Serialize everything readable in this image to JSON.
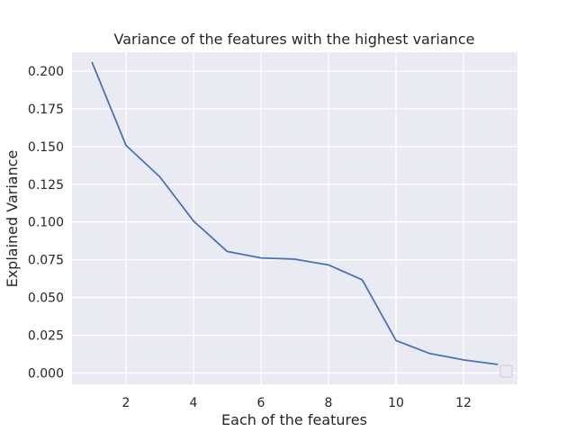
{
  "chart_data": {
    "type": "line",
    "title": "Variance of the features with the highest variance",
    "xlabel": "Each of the features",
    "ylabel": "Explained Variance",
    "x": [
      1,
      2,
      3,
      4,
      5,
      6,
      7,
      8,
      9,
      10,
      11,
      12,
      13
    ],
    "series": [
      {
        "values": [
          0.2055,
          0.1508,
          0.13,
          0.1007,
          0.0805,
          0.0762,
          0.0754,
          0.0716,
          0.0617,
          0.0215,
          0.0129,
          0.0087,
          0.0057
        ],
        "color": "#4c72b0"
      }
    ],
    "xlim": [
      0.4,
      13.6
    ],
    "ylim": [
      -0.0075,
      0.2125
    ],
    "xticks": [
      2,
      4,
      6,
      8,
      10,
      12
    ],
    "xtick_labels": [
      "2",
      "4",
      "6",
      "8",
      "10",
      "12"
    ],
    "yticks": [
      0.0,
      0.025,
      0.05,
      0.075,
      0.1,
      0.125,
      0.15,
      0.175,
      0.2
    ],
    "ytick_labels": [
      "0.000",
      "0.025",
      "0.050",
      "0.075",
      "0.100",
      "0.125",
      "0.150",
      "0.175",
      "0.200"
    ],
    "grid": true,
    "legend": "bottom-right (empty)",
    "background_color": "#eaeaf2",
    "grid_color": "#ffffff"
  }
}
